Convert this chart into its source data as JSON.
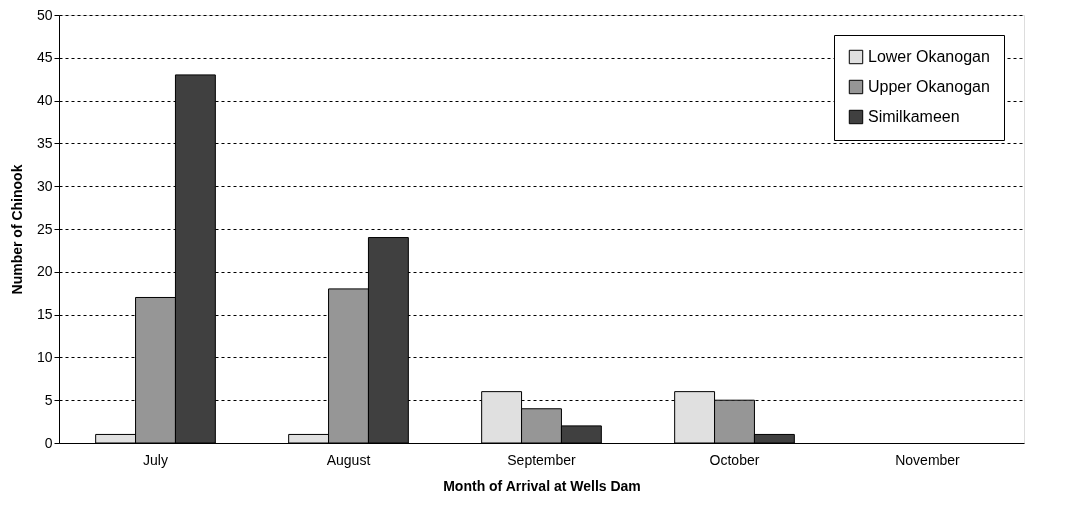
{
  "chart_data": {
    "type": "bar",
    "xlabel": "Month of Arrival at Wells Dam",
    "ylabel": "Number of Chinook",
    "categories": [
      "July",
      "August",
      "September",
      "October",
      "November"
    ],
    "series": [
      {
        "name": "Lower Okanogan",
        "color": "#e0e0e0",
        "values": [
          1,
          1,
          6,
          6,
          0
        ]
      },
      {
        "name": "Upper Okanogan",
        "color": "#969696",
        "values": [
          17,
          18,
          4,
          5,
          0
        ]
      },
      {
        "name": "Similkameen",
        "color": "#404040",
        "values": [
          43,
          24,
          2,
          1,
          0
        ]
      }
    ],
    "ylim": [
      0,
      50
    ],
    "yticks": [
      0,
      5,
      10,
      15,
      20,
      25,
      30,
      35,
      40,
      45,
      50
    ],
    "grid": "y",
    "legend": "top right"
  }
}
